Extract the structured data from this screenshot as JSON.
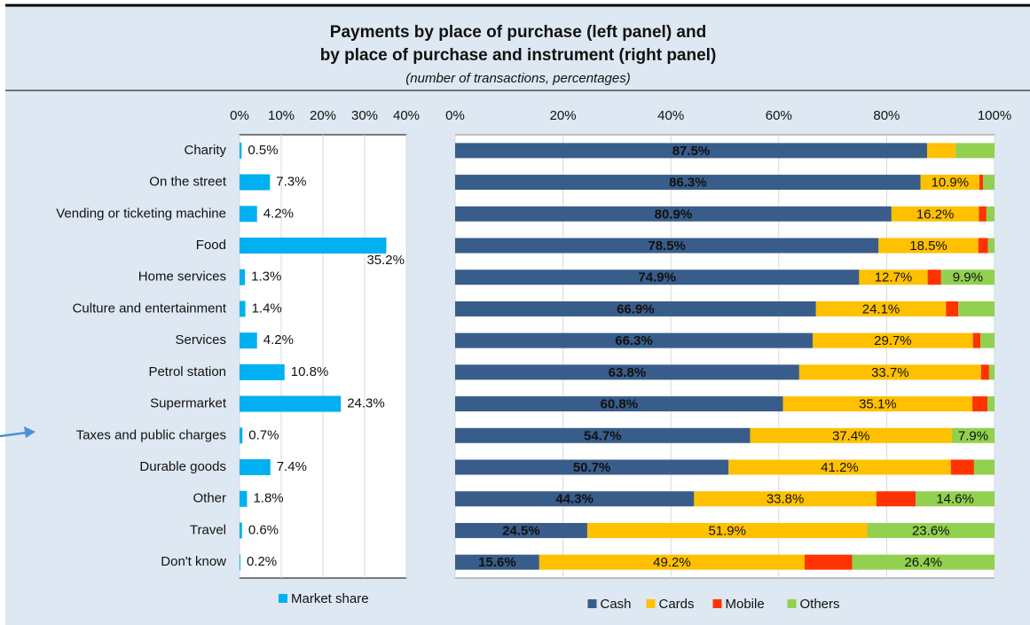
{
  "header": {
    "title": [
      "Payments by place of purchase (left panel) and",
      "by place of purchase and instrument (right panel)"
    ],
    "subtitle": "(number of transactions, percentages)"
  },
  "chart_data": [
    {
      "type": "hbar",
      "categories": [
        "Charity",
        "On the street",
        "Vending or ticketing machine",
        "Food",
        "Home services",
        "Culture and entertainment",
        "Services",
        "Petrol station",
        "Supermarket",
        "Taxes and public charges",
        "Durable goods",
        "Other",
        "Travel",
        "Don't know"
      ],
      "series": [
        {
          "name": "Market share",
          "color": "#00b0f0",
          "values": [
            0.5,
            7.3,
            4.2,
            35.2,
            1.3,
            1.4,
            4.2,
            10.8,
            24.3,
            0.7,
            7.4,
            1.8,
            0.6,
            0.2
          ],
          "value_labels": [
            "0.5%",
            "7.3%",
            "4.2%",
            "35.2%",
            "1.3%",
            "1.4%",
            "4.2%",
            "10.8%",
            "24.3%",
            "0.7%",
            "7.4%",
            "1.8%",
            "0.6%",
            "0.2%"
          ]
        }
      ],
      "xlim": [
        0,
        40
      ],
      "xticks": [
        {
          "value": 0,
          "label": "0%"
        },
        {
          "value": 10,
          "label": "10%"
        },
        {
          "value": 20,
          "label": "20%"
        },
        {
          "value": 30,
          "label": "30%"
        },
        {
          "value": 40,
          "label": "40%"
        }
      ],
      "grid": true,
      "legend": "bottom"
    },
    {
      "type": "stacked_hbar",
      "series": [
        {
          "name": "Cash",
          "color": "#385d8a",
          "values": [
            87.5,
            86.3,
            80.9,
            78.5,
            74.9,
            66.9,
            66.3,
            63.8,
            60.8,
            54.7,
            50.7,
            44.3,
            24.5,
            15.6
          ],
          "value_labels": [
            "87.5%",
            "86.3%",
            "80.9%",
            "78.5%",
            "74.9%",
            "66.9%",
            "66.3%",
            "63.8%",
            "60.8%",
            "54.7%",
            "50.7%",
            "44.3%",
            "24.5%",
            "15.6%"
          ]
        },
        {
          "name": "Cards",
          "color": "#ffc000",
          "values": [
            5.3,
            10.9,
            16.2,
            18.5,
            12.7,
            24.1,
            29.7,
            33.7,
            35.1,
            37.4,
            41.2,
            33.8,
            51.9,
            49.2
          ],
          "value_labels": [
            null,
            "10.9%",
            "16.2%",
            "18.5%",
            "12.7%",
            "24.1%",
            "29.7%",
            "33.7%",
            "35.1%",
            "37.4%",
            "41.2%",
            "33.8%",
            "51.9%",
            "49.2%"
          ]
        },
        {
          "name": "Mobile",
          "color": "#ff3300",
          "values": [
            0,
            0.7,
            1.4,
            1.8,
            2.5,
            2.3,
            1.4,
            1.5,
            2.8,
            0,
            4.3,
            7.3,
            0,
            8.8
          ]
        },
        {
          "name": "Others",
          "color": "#92d050",
          "values": [
            7.2,
            2.1,
            1.5,
            1.2,
            9.9,
            6.7,
            2.6,
            1.0,
            1.3,
            7.9,
            3.8,
            14.6,
            23.6,
            26.4
          ],
          "value_labels": [
            null,
            null,
            null,
            null,
            "9.9%",
            null,
            null,
            null,
            null,
            "7.9%",
            null,
            "14.6%",
            "23.6%",
            "26.4%"
          ]
        }
      ],
      "xlim": [
        0,
        100
      ],
      "xticks": [
        {
          "value": 0,
          "label": "0%"
        },
        {
          "value": 20,
          "label": "20%"
        },
        {
          "value": 40,
          "label": "40%"
        },
        {
          "value": 60,
          "label": "60%"
        },
        {
          "value": 80,
          "label": "80%"
        },
        {
          "value": 100,
          "label": "100%"
        }
      ],
      "grid": true,
      "legend": "bottom"
    }
  ]
}
